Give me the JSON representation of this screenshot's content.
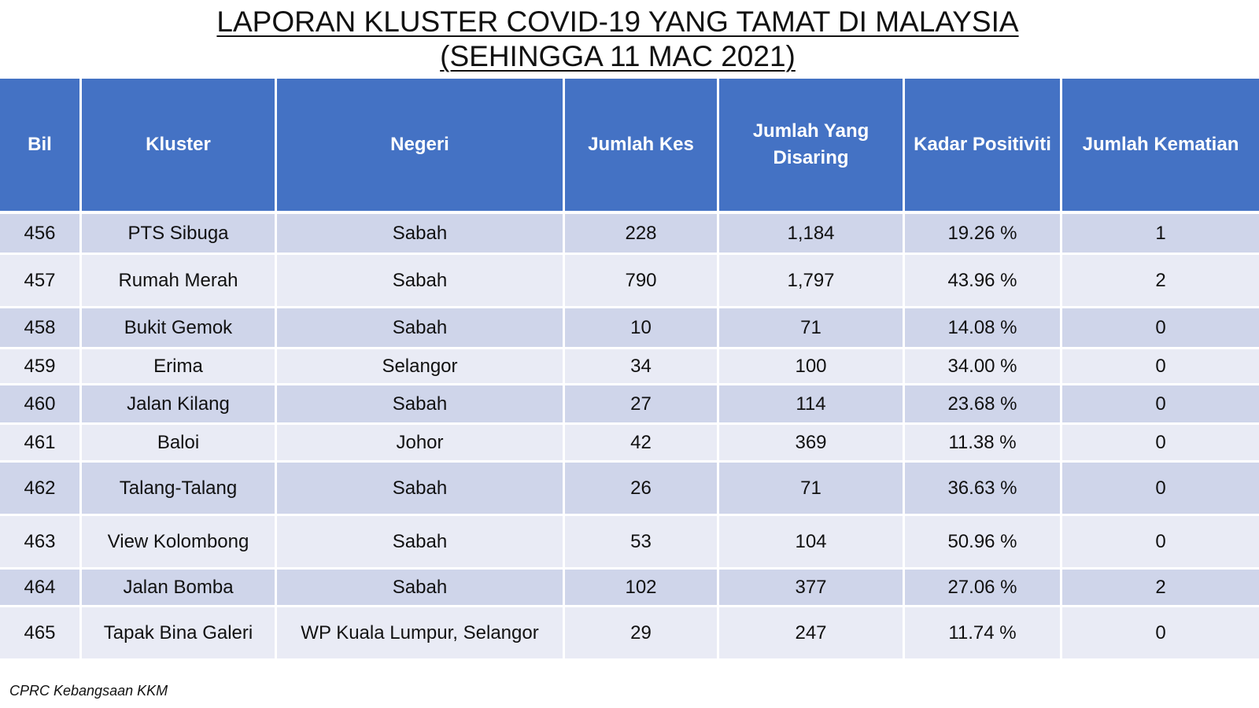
{
  "title": {
    "line1": "LAPORAN KLUSTER COVID-19 YANG TAMAT DI MALAYSIA",
    "line2": "(SEHINGGA  11 MAC 2021)"
  },
  "table": {
    "headers": [
      "Bil",
      "Kluster",
      "Negeri",
      "Jumlah Kes",
      "Jumlah Yang Disaring",
      "Kadar Positiviti",
      "Jumlah Kematian"
    ],
    "rows": [
      [
        "456",
        "PTS Sibuga",
        "Sabah",
        "228",
        "1,184",
        "19.26 %",
        "1"
      ],
      [
        "457",
        "Rumah Merah",
        "Sabah",
        "790",
        "1,797",
        "43.96 %",
        "2"
      ],
      [
        "458",
        "Bukit Gemok",
        "Sabah",
        "10",
        "71",
        "14.08 %",
        "0"
      ],
      [
        "459",
        "Erima",
        "Selangor",
        "34",
        "100",
        "34.00 %",
        "0"
      ],
      [
        "460",
        "Jalan Kilang",
        "Sabah",
        "27",
        "114",
        "23.68 %",
        "0"
      ],
      [
        "461",
        "Baloi",
        "Johor",
        "42",
        "369",
        "11.38 %",
        "0"
      ],
      [
        "462",
        "Talang-Talang",
        "Sabah",
        "26",
        "71",
        "36.63 %",
        "0"
      ],
      [
        "463",
        "View Kolombong",
        "Sabah",
        "53",
        "104",
        "50.96 %",
        "0"
      ],
      [
        "464",
        "Jalan Bomba",
        "Sabah",
        "102",
        "377",
        "27.06 %",
        "2"
      ],
      [
        "465",
        "Tapak Bina Galeri",
        "WP Kuala Lumpur, Selangor",
        "29",
        "247",
        "11.74 %",
        "0"
      ]
    ]
  },
  "footer": "CPRC Kebangsaan KKM",
  "colors": {
    "header_bg": "#4472c4",
    "row_odd_bg": "#cfd5ea",
    "row_even_bg": "#e9ebf5"
  }
}
